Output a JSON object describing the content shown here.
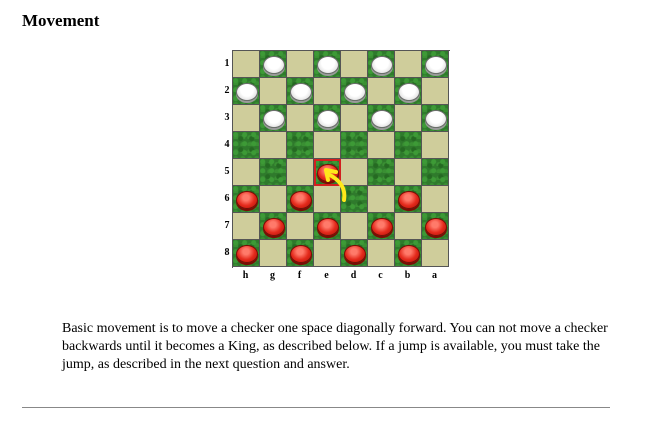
{
  "section": {
    "title": "Movement",
    "description": "Basic movement is to move a checker one space diagonally forward. You can not move a checker backwards until it becomes a King, as described below. If a jump is available, you must take the jump, as described in the next question and answer."
  },
  "board": {
    "row_labels": [
      "1",
      "2",
      "3",
      "4",
      "5",
      "6",
      "7",
      "8"
    ],
    "column_labels": [
      "h",
      "g",
      "f",
      "e",
      "d",
      "c",
      "b",
      "a"
    ],
    "squares": [
      [
        "light",
        "dark",
        "light",
        "dark",
        "light",
        "dark",
        "light",
        "dark"
      ],
      [
        "dark",
        "light",
        "dark",
        "light",
        "dark",
        "light",
        "dark",
        "light"
      ],
      [
        "light",
        "dark",
        "light",
        "dark",
        "light",
        "dark",
        "light",
        "dark"
      ],
      [
        "dark",
        "light",
        "dark",
        "light",
        "dark",
        "light",
        "dark",
        "light"
      ],
      [
        "light",
        "dark",
        "light",
        "dark",
        "light",
        "dark",
        "light",
        "dark"
      ],
      [
        "dark",
        "light",
        "dark",
        "light",
        "dark",
        "light",
        "dark",
        "light"
      ],
      [
        "light",
        "dark",
        "light",
        "dark",
        "light",
        "dark",
        "light",
        "dark"
      ],
      [
        "dark",
        "light",
        "dark",
        "light",
        "dark",
        "light",
        "dark",
        "light"
      ]
    ],
    "pieces": [
      [
        "",
        "white",
        "",
        "white",
        "",
        "white",
        "",
        "white"
      ],
      [
        "white",
        "",
        "white",
        "",
        "white",
        "",
        "white",
        ""
      ],
      [
        "",
        "white",
        "",
        "white",
        "",
        "white",
        "",
        "white"
      ],
      [
        "",
        "",
        "",
        "",
        "",
        "",
        "",
        ""
      ],
      [
        "",
        "",
        "",
        "red",
        "",
        "",
        "",
        ""
      ],
      [
        "red",
        "",
        "red",
        "",
        "",
        "",
        "red",
        ""
      ],
      [
        "",
        "red",
        "",
        "red",
        "",
        "red",
        "",
        "red"
      ],
      [
        "red",
        "",
        "red",
        "",
        "red",
        "",
        "red",
        ""
      ]
    ],
    "highlighted_square": "e5",
    "colors": {
      "light_square": "#cfcd9b",
      "dark_square": "#2f7a2c",
      "white_piece": "#ffffff",
      "red_piece": "#e42a1c",
      "highlight": "#d21f1f",
      "arrow": "#ffe81a"
    },
    "arrow_icon": "curved-arrow-icon"
  }
}
